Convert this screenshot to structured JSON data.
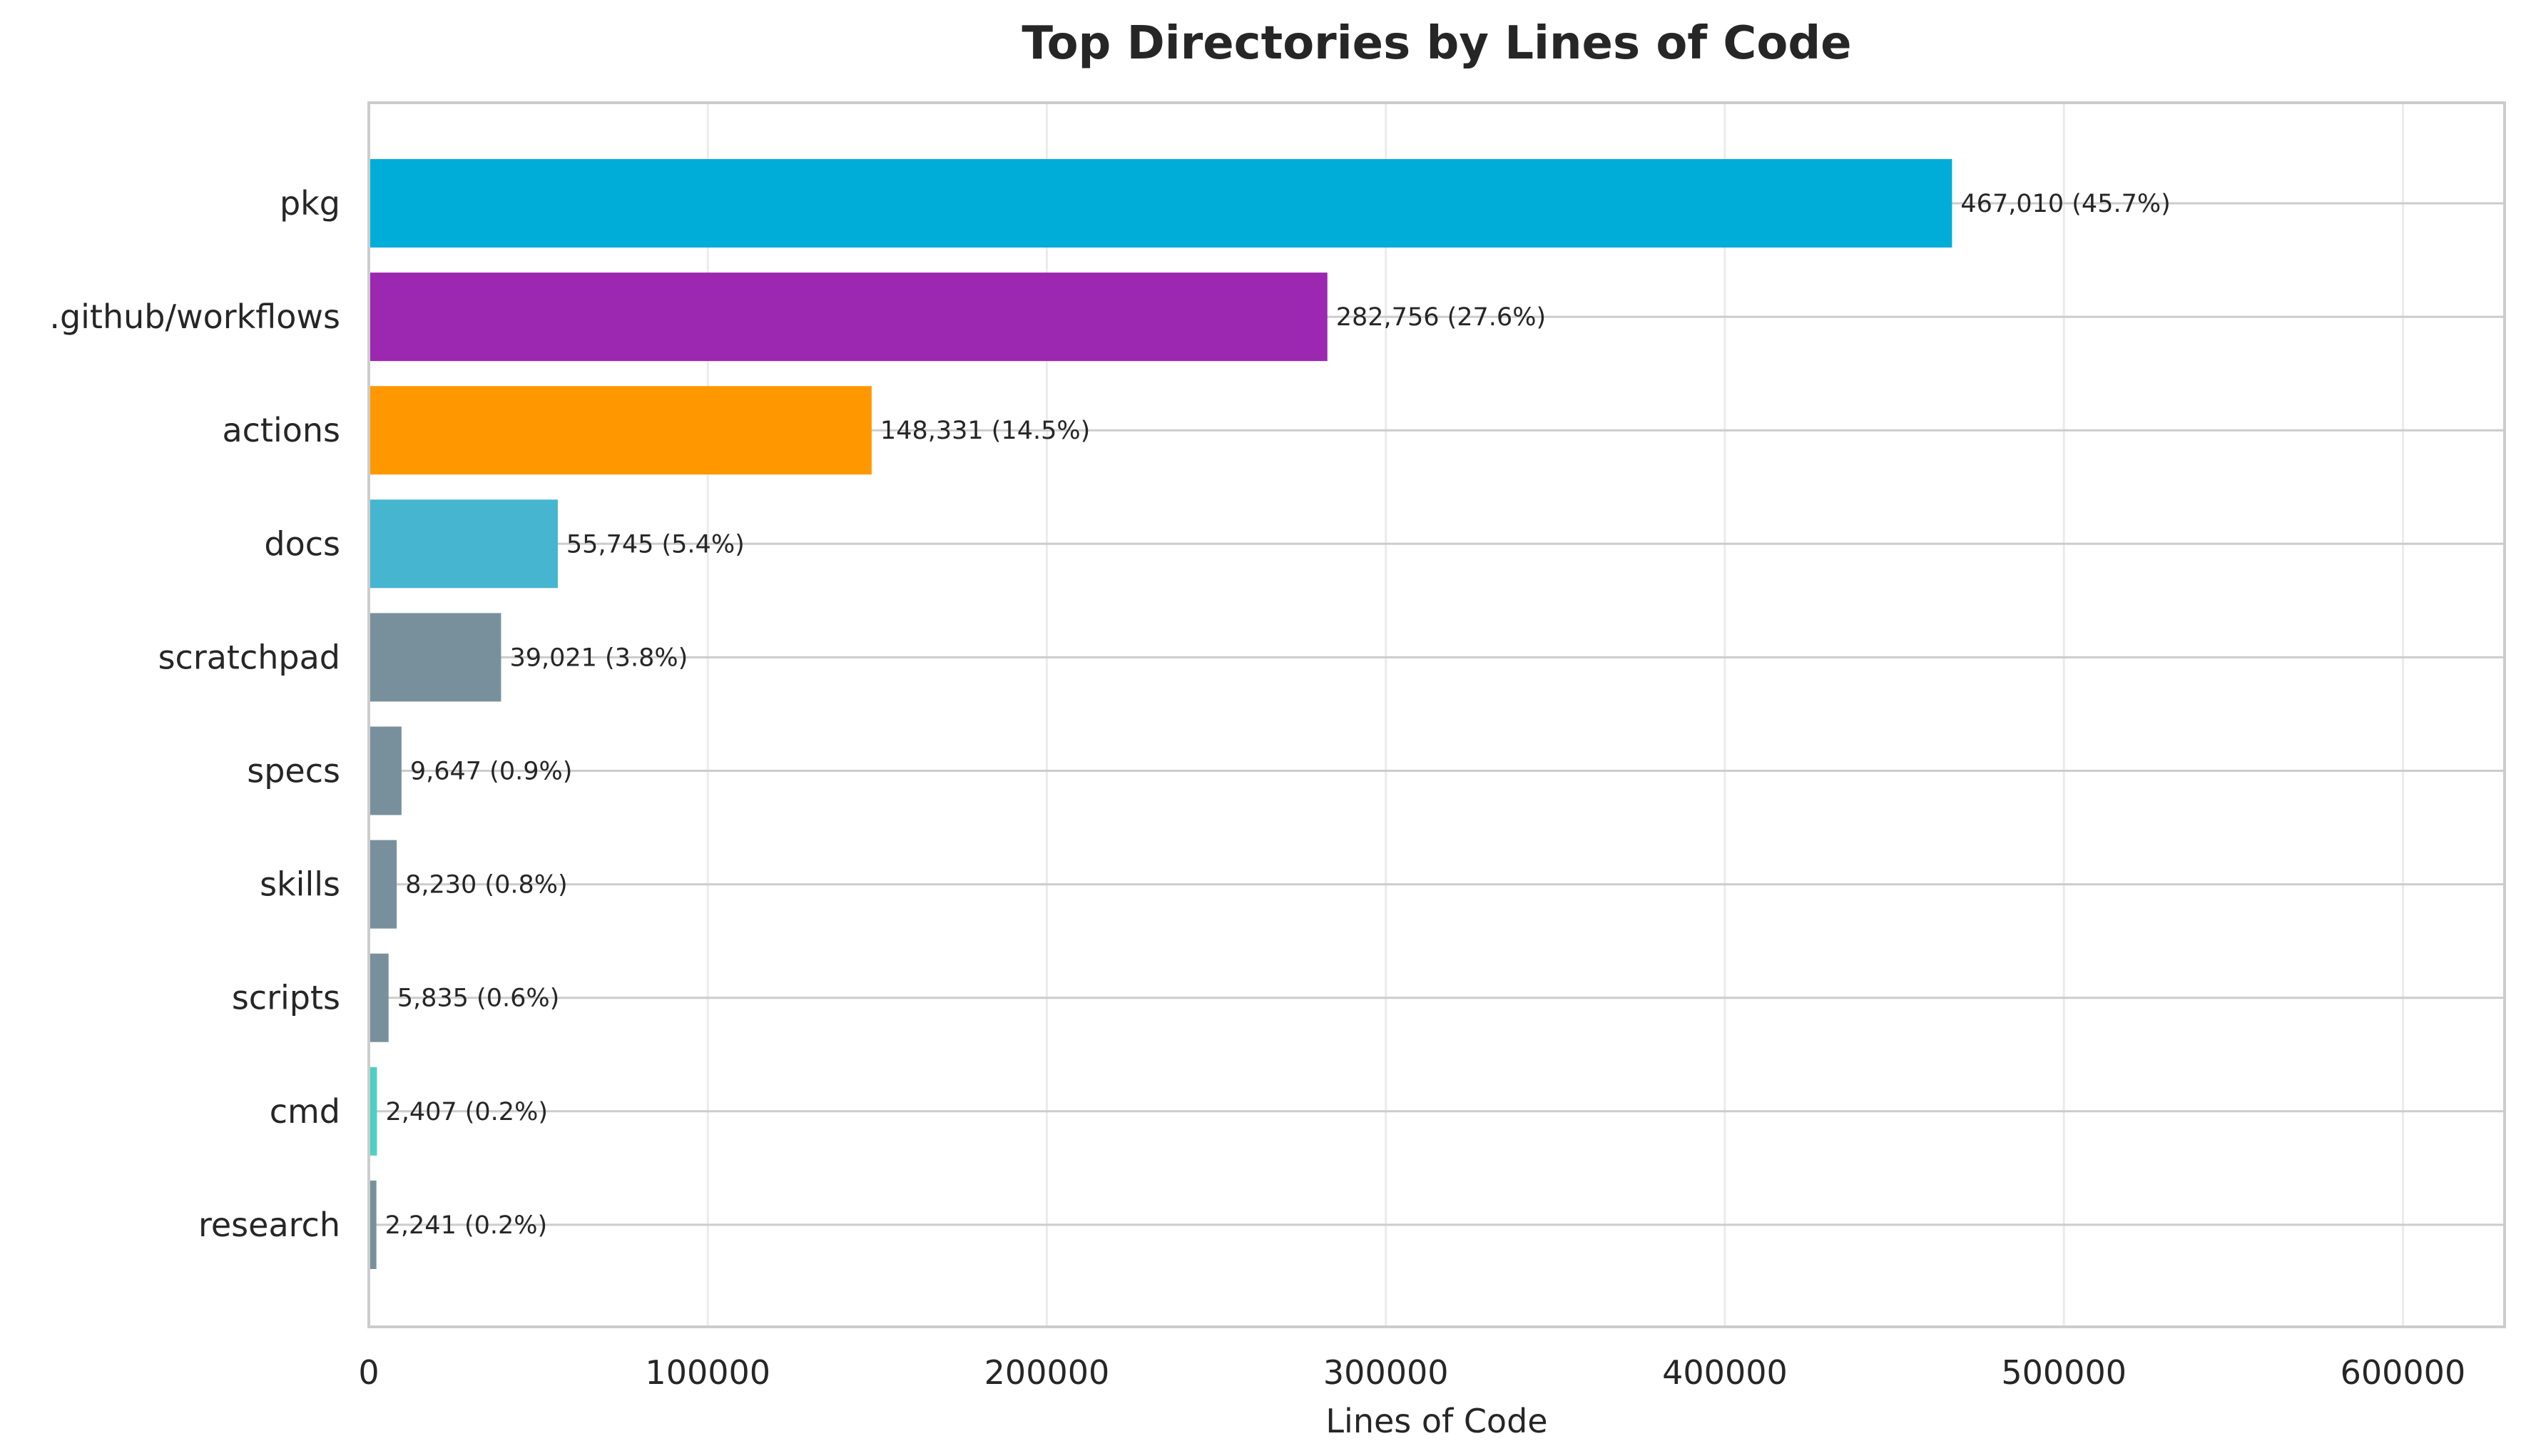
{
  "chart_data": {
    "type": "bar",
    "orientation": "horizontal",
    "title": "Top Directories by Lines of Code",
    "xlabel": "Lines of Code",
    "ylabel": "",
    "xlim": [
      0,
      630000
    ],
    "xticks": [
      0,
      100000,
      200000,
      300000,
      400000,
      500000,
      600000
    ],
    "xtick_labels": [
      "0",
      "100000",
      "200000",
      "300000",
      "400000",
      "500000",
      "600000"
    ],
    "grid": true,
    "categories": [
      "pkg",
      ".github/workflows",
      "actions",
      "docs",
      "scratchpad",
      "specs",
      "skills",
      "scripts",
      "cmd",
      "research"
    ],
    "values": [
      467010,
      282756,
      148331,
      55745,
      39021,
      9647,
      8230,
      5835,
      2407,
      2241
    ],
    "data_labels": [
      "467,010 (45.7%)",
      "282,756 (27.6%)",
      "148,331 (14.5%)",
      "55,745 (5.4%)",
      "39,021 (3.8%)",
      "9,647 (0.9%)",
      "8,230 (0.8%)",
      "5,835 (0.6%)",
      "2,407 (0.2%)",
      "2,241 (0.2%)"
    ],
    "colors": [
      "#00ADD8",
      "#9C27B0",
      "#FF9800",
      "#45B5D0",
      "#78909C",
      "#78909C",
      "#78909C",
      "#78909C",
      "#4DD0C4",
      "#78909C"
    ]
  }
}
